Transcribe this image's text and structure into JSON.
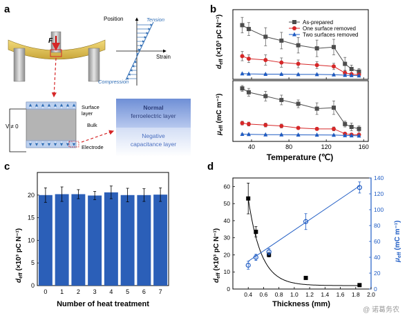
{
  "panels": {
    "a": {
      "label": "a",
      "force_label": "F",
      "position_label": "Position",
      "strain_label": "Strain",
      "tension_label": "Tension",
      "compression_label": "Compression",
      "surface_layer_label_1": "Surface",
      "surface_layer_label_2": "layer",
      "bulk_label": "Bulk",
      "electrode_label": "Electrode",
      "voltage_label": "V ≠ 0",
      "normal_layer_label_1": "Normal",
      "normal_layer_label_2": "ferroelectric layer",
      "negative_layer_label_1": "Negative",
      "negative_layer_label_2": "capacitance layer",
      "colors": {
        "normal_layer": "#2c3e7a",
        "negative_layer": "#4a6fc0",
        "arrows": "#2f6db5",
        "dash": "#d62728"
      }
    },
    "b": {
      "label": "b"
    },
    "c": {
      "label": "c"
    },
    "d": {
      "label": "d"
    }
  },
  "watermark": "@ 诺葛务农",
  "chart_data": [
    {
      "id": "b-top",
      "type": "line",
      "ylabel": "d_eff (×10³ pC N⁻¹)",
      "ylim": [
        -1,
        26
      ],
      "x": [
        30,
        37,
        55,
        72,
        90,
        110,
        128,
        140,
        147,
        155
      ],
      "series": [
        {
          "name": "As-prepared",
          "color": "#4d4d4d",
          "marker": "square",
          "values": [
            20,
            18.5,
            15.5,
            14,
            12.2,
            11,
            11.5,
            5,
            3,
            2
          ],
          "errors": [
            3,
            2.5,
            3.5,
            3.2,
            3,
            3.2,
            3,
            2.5,
            1.5,
            1.2
          ]
        },
        {
          "name": "One surface removed",
          "color": "#d62728",
          "marker": "circle",
          "values": [
            8,
            7,
            6.5,
            5.5,
            5,
            4.5,
            4,
            1.5,
            1,
            0.8
          ],
          "errors": [
            1.8,
            1.5,
            2,
            1.8,
            1.5,
            1.3,
            1.2,
            0.8,
            0.5,
            0.4
          ]
        },
        {
          "name": "Two surfaces removed",
          "color": "#1f5cc4",
          "marker": "triangle",
          "values": [
            1.2,
            1.1,
            1,
            1,
            0.9,
            0.9,
            0.8,
            0.6,
            0.5,
            0.4
          ],
          "errors": [
            0.2,
            0.2,
            0.2,
            0.2,
            0.2,
            0.2,
            0.2,
            0.2,
            0.2,
            0.2
          ]
        }
      ],
      "legend_position": "top-right"
    },
    {
      "id": "b-bottom",
      "type": "line",
      "xlabel": "Temperature (℃)",
      "ylabel": "μ_eff (mC m⁻¹)",
      "xlim": [
        20,
        165
      ],
      "ylim": [
        -5,
        58
      ],
      "x_ticks": [
        40,
        80,
        120,
        160
      ],
      "x": [
        30,
        37,
        55,
        72,
        90,
        110,
        128,
        140,
        147,
        155
      ],
      "series": [
        {
          "name": "As-prepared",
          "color": "#4d4d4d",
          "marker": "square",
          "values": [
            50,
            46,
            42,
            38,
            34,
            29,
            30,
            13,
            10,
            8
          ],
          "errors": [
            3,
            4,
            5,
            5,
            4,
            6,
            7,
            3,
            4,
            3
          ]
        },
        {
          "name": "One surface removed",
          "color": "#d62728",
          "marker": "circle",
          "values": [
            14,
            13,
            12,
            11,
            9,
            8,
            8,
            3,
            2,
            2
          ],
          "errors": [
            2,
            2,
            2,
            2,
            1.5,
            1.5,
            2,
            1,
            1,
            1
          ]
        },
        {
          "name": "Two surfaces removed",
          "color": "#1f5cc4",
          "marker": "triangle",
          "values": [
            2.5,
            2.3,
            2,
            2,
            1.8,
            1.7,
            1.6,
            1.2,
            1,
            0.8
          ],
          "errors": [
            0.5,
            0.5,
            0.5,
            0.5,
            0.5,
            0.5,
            0.5,
            0.5,
            0.5,
            0.5
          ]
        }
      ]
    },
    {
      "id": "c",
      "type": "bar",
      "xlabel": "Number of heat treatment",
      "ylabel": "d_eff (×10³ pC N⁻¹)",
      "ylim": [
        0,
        25
      ],
      "y_ticks": [
        0,
        5,
        10,
        15,
        20
      ],
      "categories": [
        "0",
        "1",
        "2",
        "3",
        "4",
        "5",
        "6",
        "7"
      ],
      "values": [
        20,
        20.2,
        20.2,
        19.9,
        20.6,
        20,
        20,
        20.1
      ],
      "errors": [
        1.6,
        1.6,
        1.0,
        0.9,
        1.4,
        1.5,
        1.4,
        1.5
      ],
      "color": "#2b5fb8"
    },
    {
      "id": "d",
      "type": "scatter",
      "xlabel": "Thickness (mm)",
      "ylabel": "d_eff (×10³ pC N⁻¹)",
      "y2label": "μ_eff (mC m⁻¹)",
      "xlim": [
        0.2,
        2.0
      ],
      "ylim": [
        0,
        65
      ],
      "y2lim": [
        0,
        140
      ],
      "x_ticks": [
        0.4,
        0.6,
        0.8,
        1.0,
        1.2,
        1.4,
        1.6,
        1.8,
        2.0
      ],
      "x_tick_labels": [
        "0.4",
        "0.6",
        "0.8",
        "1.0",
        "1.2",
        "1.4",
        "1.6",
        "1.8",
        "2.0"
      ],
      "y_ticks": [
        0,
        10,
        20,
        30,
        40,
        50,
        60
      ],
      "y2_ticks": [
        0,
        20,
        40,
        60,
        80,
        100,
        120,
        140
      ],
      "series": [
        {
          "name": "d_eff",
          "axis": "left",
          "color": "#000000",
          "marker": "square",
          "x": [
            0.4,
            0.5,
            0.67,
            1.15,
            1.85
          ],
          "values": [
            53,
            33.5,
            20,
            6.5,
            2.3
          ],
          "errors": [
            9,
            3,
            1.2,
            0.6,
            0.3
          ]
        },
        {
          "name": "μ_eff",
          "axis": "right",
          "color": "#1f5cc4",
          "marker": "circle",
          "x": [
            0.4,
            0.5,
            0.67,
            1.15,
            1.85
          ],
          "values": [
            30,
            40,
            47,
            85,
            128
          ],
          "errors": [
            5,
            4,
            4,
            10,
            7
          ]
        }
      ],
      "fit_lines": [
        {
          "axis": "left",
          "color": "#000000",
          "kind": "decay"
        },
        {
          "axis": "right",
          "color": "#1f5cc4",
          "kind": "linear",
          "from": [
            0.4,
            35
          ],
          "to": [
            1.85,
            130
          ]
        }
      ]
    }
  ]
}
